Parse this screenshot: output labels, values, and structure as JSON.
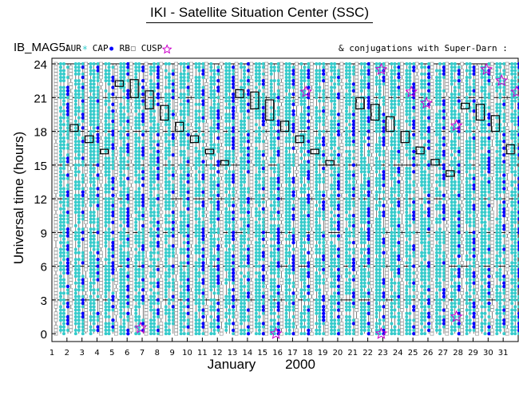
{
  "header": {
    "title": "IKI - Satellite Situation Center (SSC)"
  },
  "legend": {
    "instrument": "IB_MAG5:",
    "items": [
      {
        "label": "AUR",
        "color": "#33cccc",
        "symbol": "asterisk"
      },
      {
        "label": "CAP",
        "color": "#0000ff",
        "symbol": "dot"
      },
      {
        "label": "RB",
        "color": "#888888",
        "symbol": "square"
      },
      {
        "label": "CUSP",
        "color": "#cc00cc",
        "symbol": "star"
      }
    ],
    "conjugations": "& conjugations with Super-Darn :"
  },
  "chart_data": {
    "type": "scatter",
    "ylabel": "Universal time (hours)",
    "xlabel_month": "January",
    "xlabel_year": "2000",
    "x": [
      1,
      2,
      3,
      4,
      5,
      6,
      7,
      8,
      9,
      10,
      11,
      12,
      13,
      14,
      15,
      16,
      17,
      18,
      19,
      20,
      21,
      22,
      23,
      24,
      25,
      26,
      27,
      28,
      29,
      30,
      31
    ],
    "x_tick_labels": [
      "1",
      "2",
      "3",
      "4",
      "5",
      "6",
      "7",
      "8",
      "9",
      "10",
      "11",
      "12",
      "13",
      "14",
      "15",
      "16",
      "17",
      "18",
      "19",
      "20",
      "21",
      "22",
      "23",
      "24",
      "25",
      "26",
      "27",
      "28",
      "29",
      "30",
      "31"
    ],
    "y_ticks": [
      0,
      3,
      6,
      9,
      12,
      15,
      18,
      21,
      24
    ],
    "y_tick_labels": [
      "0",
      "3",
      "6",
      "9",
      "12",
      "15",
      "18",
      "21",
      "24"
    ],
    "xlim": [
      1,
      32
    ],
    "ylim": [
      -0.7,
      24.5
    ],
    "grid_hours": [
      3,
      6,
      9,
      12,
      15,
      18,
      21,
      24
    ],
    "conjugation_boxes": [
      {
        "day": 2,
        "from": 18.0,
        "to": 18.6
      },
      {
        "day": 3,
        "from": 17.0,
        "to": 17.6
      },
      {
        "day": 4,
        "from": 16.0,
        "to": 16.4
      },
      {
        "day": 5,
        "from": 22.0,
        "to": 22.5
      },
      {
        "day": 6,
        "from": 21.0,
        "to": 22.6
      },
      {
        "day": 7,
        "from": 20.0,
        "to": 21.6
      },
      {
        "day": 8,
        "from": 19.0,
        "to": 20.3
      },
      {
        "day": 9,
        "from": 18.0,
        "to": 18.8
      },
      {
        "day": 10,
        "from": 17.0,
        "to": 17.6
      },
      {
        "day": 11,
        "from": 16.0,
        "to": 16.4
      },
      {
        "day": 12,
        "from": 15.0,
        "to": 15.4
      },
      {
        "day": 13,
        "from": 21.0,
        "to": 21.7
      },
      {
        "day": 14,
        "from": 20.0,
        "to": 21.5
      },
      {
        "day": 15,
        "from": 19.0,
        "to": 20.8
      },
      {
        "day": 16,
        "from": 18.0,
        "to": 18.9
      },
      {
        "day": 17,
        "from": 17.0,
        "to": 17.6
      },
      {
        "day": 18,
        "from": 16.0,
        "to": 16.4
      },
      {
        "day": 19,
        "from": 15.0,
        "to": 15.4
      },
      {
        "day": 21,
        "from": 20.0,
        "to": 21.0
      },
      {
        "day": 22,
        "from": 19.0,
        "to": 20.4
      },
      {
        "day": 23,
        "from": 18.0,
        "to": 19.3
      },
      {
        "day": 24,
        "from": 17.0,
        "to": 18.0
      },
      {
        "day": 25,
        "from": 16.0,
        "to": 16.6
      },
      {
        "day": 26,
        "from": 15.0,
        "to": 15.5
      },
      {
        "day": 27,
        "from": 14.0,
        "to": 14.5
      },
      {
        "day": 28,
        "from": 20.0,
        "to": 20.5
      },
      {
        "day": 29,
        "from": 19.0,
        "to": 20.4
      },
      {
        "day": 30,
        "from": 18.0,
        "to": 19.4
      },
      {
        "day": 31,
        "from": 16.0,
        "to": 16.8
      }
    ],
    "cusp_stars": [
      {
        "day": 7,
        "hour": 0.5
      },
      {
        "day": 16,
        "hour": 0.0
      },
      {
        "day": 18,
        "hour": 21.5
      },
      {
        "day": 23,
        "hour": 23.5
      },
      {
        "day": 23,
        "hour": 0.0
      },
      {
        "day": 25,
        "hour": 21.5
      },
      {
        "day": 26,
        "hour": 20.5
      },
      {
        "day": 28,
        "hour": 18.5
      },
      {
        "day": 28,
        "hour": 1.5
      },
      {
        "day": 30,
        "hour": 23.5
      },
      {
        "day": 31,
        "hour": 22.5
      },
      {
        "day": 32,
        "hour": 21.5
      }
    ]
  }
}
